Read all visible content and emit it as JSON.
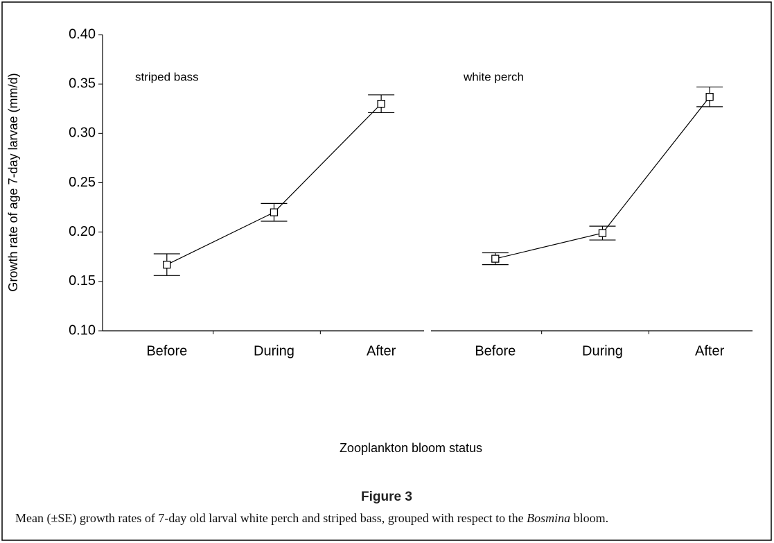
{
  "chart_data": {
    "type": "line",
    "x_label": "Zooplankton bloom status",
    "y_label": "Growth rate of age 7-day larvae (mm/d)",
    "categories": [
      "Before",
      "During",
      "After"
    ],
    "ylim": [
      0.1,
      0.4
    ],
    "yticks": [
      {
        "value": 0.1,
        "label": "0.10"
      },
      {
        "value": 0.15,
        "label": "0.15"
      },
      {
        "value": 0.2,
        "label": "0.20"
      },
      {
        "value": 0.25,
        "label": "0.25"
      },
      {
        "value": 0.3,
        "label": "0.30"
      },
      {
        "value": 0.35,
        "label": "0.35"
      },
      {
        "value": 0.4,
        "label": "0.40"
      }
    ],
    "series": [
      {
        "name": "striped bass",
        "color": "#000000",
        "values": [
          0.167,
          0.22,
          0.33
        ],
        "errors": [
          0.011,
          0.009,
          0.009
        ]
      },
      {
        "name": "white perch",
        "color": "#000000",
        "values": [
          0.173,
          0.199,
          0.337
        ],
        "errors": [
          0.006,
          0.007,
          0.01
        ]
      }
    ]
  },
  "caption": {
    "label": "Figure 3",
    "text_before": "Mean (±SE) growth rates of 7-day old larval white perch and striped bass, grouped with respect to the",
    "italic": "Bosmina",
    "text_after": "bloom."
  }
}
